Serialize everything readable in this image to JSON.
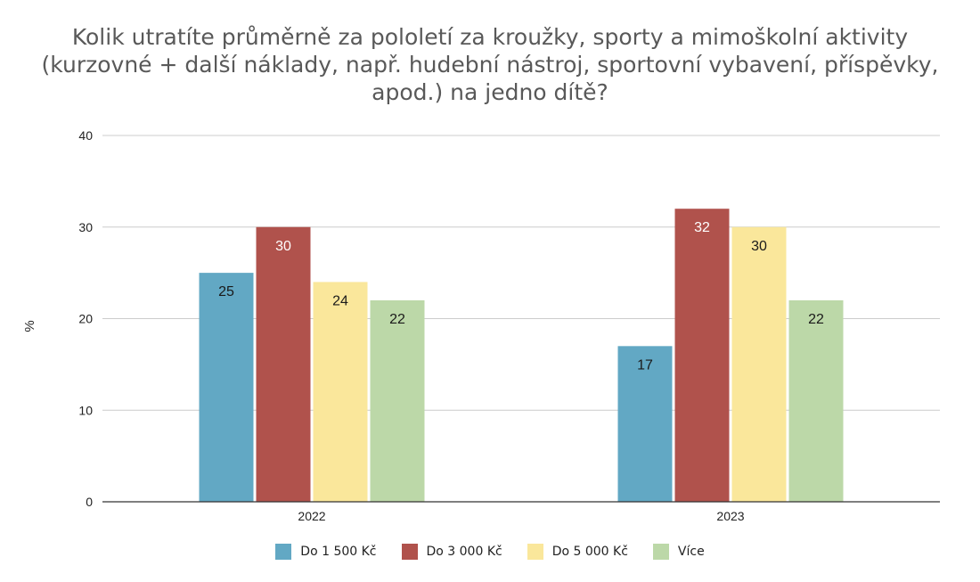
{
  "chart_data": {
    "type": "bar",
    "title_lines": [
      "Kolik utratíte průměrně za pololetí za kroužky, sporty a mimoškolní aktivity",
      "(kurzovné + další náklady, např. hudební nástroj, sportovní vybavení, příspěvky,",
      "apod.) na jedno dítě?"
    ],
    "xlabel": "",
    "ylabel": "%",
    "ylim": [
      0,
      40
    ],
    "yticks": [
      0,
      10,
      20,
      30,
      40
    ],
    "grid": true,
    "legend_position": "bottom",
    "categories": [
      "2022",
      "2023"
    ],
    "series": [
      {
        "name": "Do 1 500 Kč",
        "color": "#62a8c4",
        "label_color": "#1a1a1a",
        "values": [
          25,
          17
        ]
      },
      {
        "name": "Do 3 000 Kč",
        "color": "#b0524c",
        "label_color": "#ffffff",
        "values": [
          30,
          32
        ]
      },
      {
        "name": "Do 5 000 Kč",
        "color": "#fae79b",
        "label_color": "#1a1a1a",
        "values": [
          24,
          30
        ]
      },
      {
        "name": "Více",
        "color": "#bcd8a8",
        "label_color": "#1a1a1a",
        "values": [
          22,
          22
        ]
      }
    ]
  }
}
